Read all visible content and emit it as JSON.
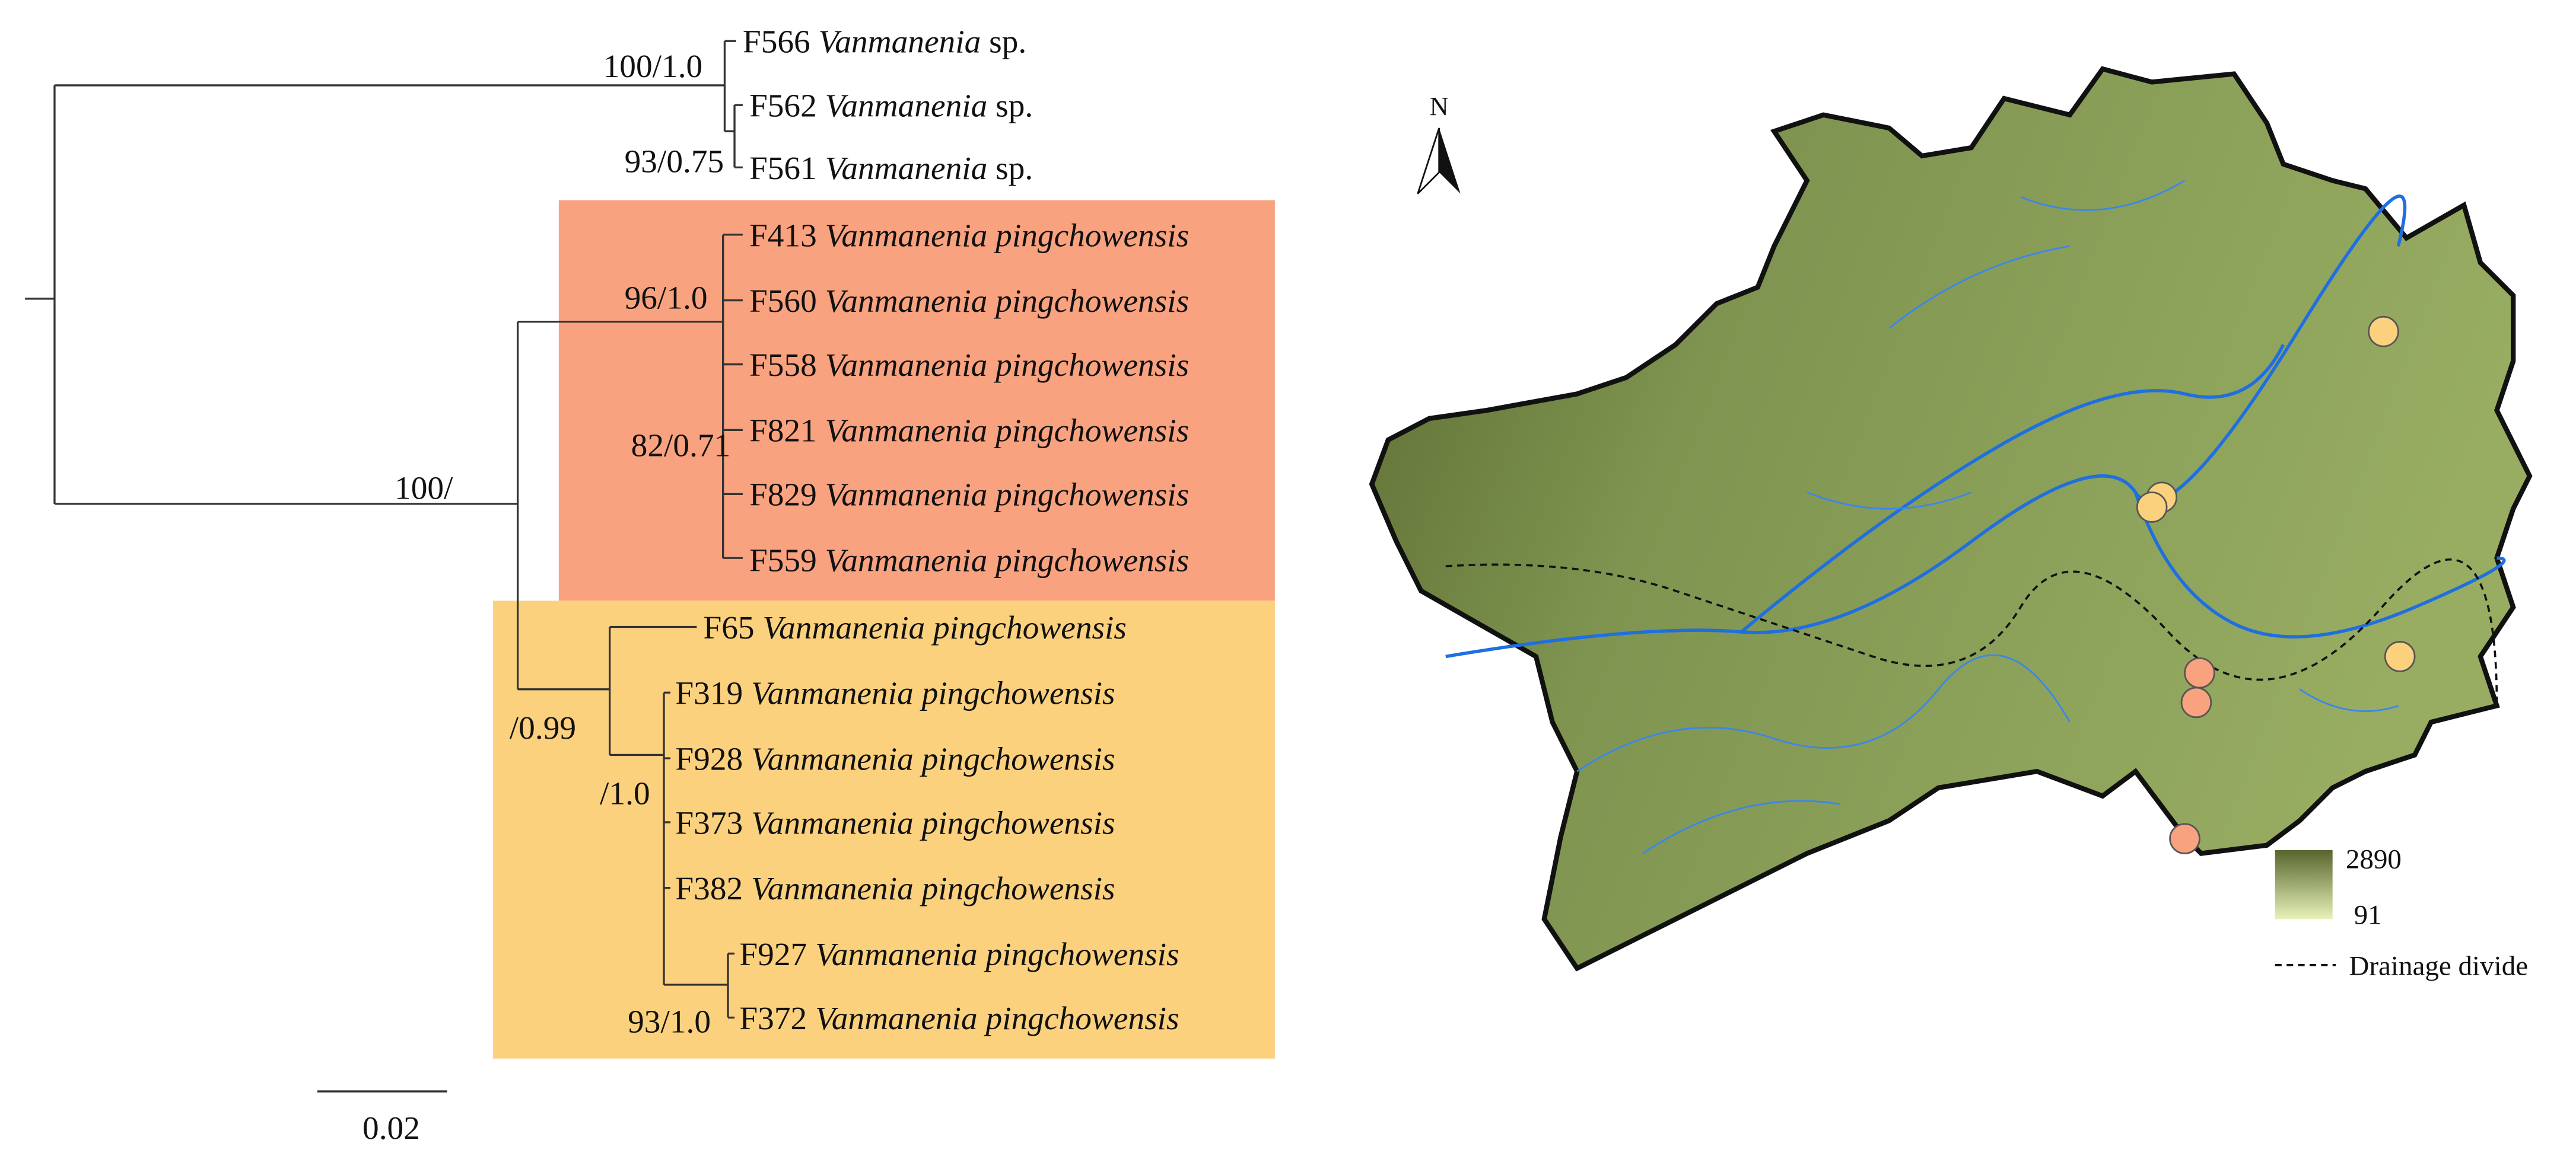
{
  "tree": {
    "leaves": [
      {
        "code": "F566",
        "taxon": "Vanmanenia",
        "suffix": "sp."
      },
      {
        "code": "F562",
        "taxon": "Vanmanenia",
        "suffix": "sp."
      },
      {
        "code": "F561",
        "taxon": "Vanmanenia",
        "suffix": "sp."
      },
      {
        "code": "F413",
        "taxon": "Vanmanenia pingchowensis"
      },
      {
        "code": "F560",
        "taxon": "Vanmanenia pingchowensis"
      },
      {
        "code": "F558",
        "taxon": "Vanmanenia pingchowensis"
      },
      {
        "code": "F821",
        "taxon": "Vanmanenia pingchowensis"
      },
      {
        "code": "F829",
        "taxon": "Vanmanenia pingchowensis"
      },
      {
        "code": "F559",
        "taxon": "Vanmanenia pingchowensis"
      },
      {
        "code": "F65",
        "taxon": "Vanmanenia pingchowensis"
      },
      {
        "code": "F319",
        "taxon": "Vanmanenia pingchowensis"
      },
      {
        "code": "F928",
        "taxon": "Vanmanenia pingchowensis"
      },
      {
        "code": "F373",
        "taxon": "Vanmanenia pingchowensis"
      },
      {
        "code": "F382",
        "taxon": "Vanmanenia pingchowensis"
      },
      {
        "code": "F927",
        "taxon": "Vanmanenia pingchowensis"
      },
      {
        "code": "F372",
        "taxon": "Vanmanenia pingchowensis"
      }
    ],
    "supports": [
      "100/1.0",
      "93/0.75",
      "96/1.0",
      "82/0.71",
      "100/",
      "/0.99",
      "/1.0",
      "93/1.0"
    ],
    "scale": "0.02"
  },
  "map": {
    "north": "N",
    "elevation_max": "2890",
    "elevation_min": "91",
    "divide_label": "Drainage divide"
  }
}
